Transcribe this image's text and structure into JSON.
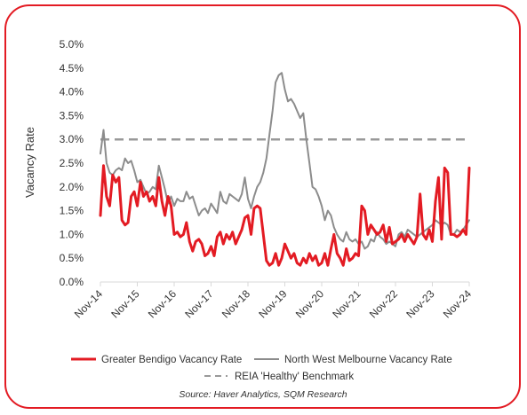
{
  "chart_data": {
    "type": "line",
    "ylabel": "Vacancy Rate",
    "xlabel": "",
    "title": "",
    "ylim": [
      0,
      5
    ],
    "xlim": [
      0,
      120
    ],
    "y_ticks": [
      "0.0%",
      "0.5%",
      "1.0%",
      "1.5%",
      "2.0%",
      "2.5%",
      "3.0%",
      "3.5%",
      "4.0%",
      "4.5%",
      "5.0%"
    ],
    "y_tick_values": [
      0,
      0.5,
      1,
      1.5,
      2,
      2.5,
      3,
      3.5,
      4,
      4.5,
      5
    ],
    "x_ticks": [
      "Nov-14",
      "Nov-15",
      "Nov-16",
      "Nov-17",
      "Nov-18",
      "Nov-19",
      "Nov-20",
      "Nov-21",
      "Nov-22",
      "Nov-23",
      "Nov-24"
    ],
    "x_tick_values": [
      0,
      12,
      24,
      36,
      48,
      60,
      72,
      84,
      96,
      108,
      120
    ],
    "series": [
      {
        "name": "Greater Bendigo Vacancy Rate",
        "color": "#e31b23",
        "x": [
          0,
          1,
          2,
          3,
          4,
          5,
          6,
          7,
          8,
          9,
          10,
          11,
          12,
          13,
          14,
          15,
          16,
          17,
          18,
          19,
          20,
          21,
          22,
          23,
          24,
          25,
          26,
          27,
          28,
          29,
          30,
          31,
          32,
          33,
          34,
          35,
          36,
          37,
          38,
          39,
          40,
          41,
          42,
          43,
          44,
          45,
          46,
          47,
          48,
          49,
          50,
          51,
          52,
          53,
          54,
          55,
          56,
          57,
          58,
          59,
          60,
          61,
          62,
          63,
          64,
          65,
          66,
          67,
          68,
          69,
          70,
          71,
          72,
          73,
          74,
          75,
          76,
          77,
          78,
          79,
          80,
          81,
          82,
          83,
          84,
          85,
          86,
          87,
          88,
          89,
          90,
          91,
          92,
          93,
          94,
          95,
          96,
          97,
          98,
          99,
          100,
          101,
          102,
          103,
          104,
          105,
          106,
          107,
          108,
          109,
          110,
          111,
          112,
          113,
          114,
          115,
          116,
          117,
          118,
          119,
          120
        ],
        "values": [
          1.4,
          2.45,
          1.8,
          1.6,
          2.25,
          2.1,
          2.2,
          1.3,
          1.2,
          1.25,
          1.8,
          1.9,
          1.6,
          2.1,
          1.8,
          1.9,
          1.7,
          1.8,
          1.6,
          2.2,
          1.7,
          1.4,
          1.8,
          1.6,
          1.0,
          1.05,
          0.95,
          1.0,
          1.25,
          0.85,
          0.65,
          0.85,
          0.9,
          0.8,
          0.55,
          0.6,
          0.75,
          0.55,
          0.95,
          1.05,
          0.8,
          1.0,
          0.9,
          1.05,
          0.8,
          0.95,
          1.1,
          1.35,
          1.4,
          1.0,
          1.55,
          1.6,
          1.55,
          1.0,
          0.45,
          0.35,
          0.4,
          0.6,
          0.35,
          0.5,
          0.8,
          0.65,
          0.5,
          0.6,
          0.4,
          0.35,
          0.5,
          0.4,
          0.6,
          0.45,
          0.55,
          0.35,
          0.4,
          0.6,
          0.35,
          0.7,
          1.0,
          0.6,
          0.5,
          0.35,
          0.7,
          0.45,
          0.5,
          0.6,
          0.55,
          1.6,
          1.5,
          1.0,
          1.2,
          1.1,
          1.0,
          1.05,
          1.2,
          0.85,
          1.15,
          0.8,
          0.85,
          0.9,
          1.0,
          0.85,
          1.0,
          0.9,
          0.8,
          0.95,
          1.85,
          1.0,
          0.9,
          1.1,
          0.85,
          1.7,
          2.2,
          0.9,
          2.4,
          2.3,
          1.0,
          1.0,
          0.95,
          1.0,
          1.1,
          1.0,
          2.4
        ]
      },
      {
        "name": "North West Melbourne Vacancy Rate",
        "color": "#8c8c8c",
        "x": [
          0,
          1,
          2,
          3,
          4,
          5,
          6,
          7,
          8,
          9,
          10,
          11,
          12,
          13,
          14,
          15,
          16,
          17,
          18,
          19,
          20,
          21,
          22,
          23,
          24,
          25,
          26,
          27,
          28,
          29,
          30,
          31,
          32,
          33,
          34,
          35,
          36,
          37,
          38,
          39,
          40,
          41,
          42,
          43,
          44,
          45,
          46,
          47,
          48,
          49,
          50,
          51,
          52,
          53,
          54,
          55,
          56,
          57,
          58,
          59,
          60,
          61,
          62,
          63,
          64,
          65,
          66,
          67,
          68,
          69,
          70,
          71,
          72,
          73,
          74,
          75,
          76,
          77,
          78,
          79,
          80,
          81,
          82,
          83,
          84,
          85,
          86,
          87,
          88,
          89,
          90,
          91,
          92,
          93,
          94,
          95,
          96,
          97,
          98,
          99,
          100,
          101,
          102,
          103,
          104,
          105,
          106,
          107,
          108,
          109,
          110,
          111,
          112,
          113,
          114,
          115,
          116,
          117,
          118,
          119,
          120
        ],
        "values": [
          2.7,
          3.2,
          2.5,
          2.3,
          2.25,
          2.35,
          2.4,
          2.35,
          2.6,
          2.5,
          2.55,
          2.35,
          2.1,
          2.15,
          2.0,
          1.85,
          1.9,
          2.0,
          1.95,
          2.45,
          2.2,
          1.95,
          1.65,
          1.8,
          1.6,
          1.75,
          1.7,
          1.7,
          1.9,
          1.75,
          1.8,
          1.6,
          1.4,
          1.5,
          1.55,
          1.45,
          1.65,
          1.55,
          1.45,
          1.9,
          1.7,
          1.65,
          1.85,
          1.8,
          1.75,
          1.7,
          1.85,
          2.2,
          1.75,
          1.55,
          1.8,
          2.0,
          2.1,
          2.3,
          2.6,
          3.1,
          3.6,
          4.2,
          4.35,
          4.4,
          4.05,
          3.8,
          3.85,
          3.75,
          3.6,
          3.45,
          3.55,
          3.0,
          2.5,
          2.0,
          1.95,
          1.8,
          1.6,
          1.3,
          1.5,
          1.4,
          1.15,
          1.0,
          0.9,
          0.85,
          1.05,
          0.9,
          0.85,
          0.9,
          0.8,
          0.85,
          0.7,
          0.75,
          0.9,
          0.85,
          1.05,
          0.95,
          0.9,
          0.8,
          0.85,
          0.8,
          0.75,
          1.0,
          1.05,
          0.95,
          1.1,
          1.05,
          1.0,
          0.95,
          1.0,
          1.05,
          1.1,
          1.15,
          1.2,
          1.3,
          1.25,
          1.2,
          1.25,
          1.2,
          1.0,
          1.0,
          1.1,
          1.05,
          1.1,
          1.2,
          1.3
        ]
      }
    ],
    "benchmark": {
      "name": "REIA 'Healthy' Benchmark",
      "value": 3.0,
      "color": "#999999"
    },
    "grid": false,
    "legend_position": "bottom"
  },
  "source": "Source: Haver Analytics, SQM Research"
}
